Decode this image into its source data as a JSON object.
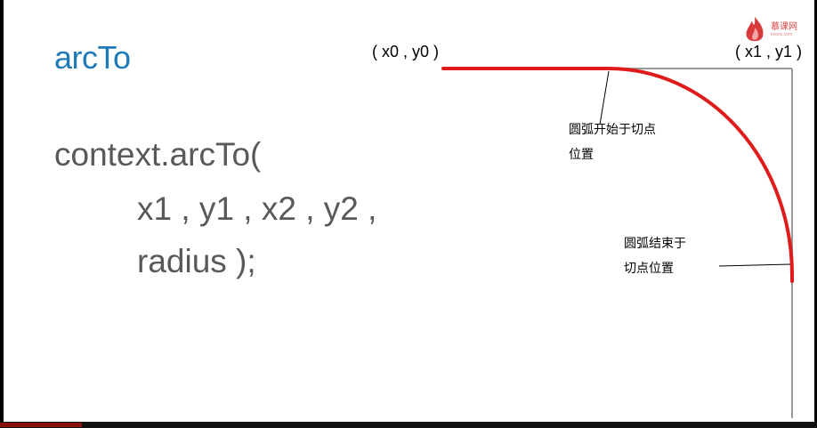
{
  "slide": {
    "title": "arcTo",
    "code_lines": [
      "context.arcTo(",
      "x1 , y1 , x2 , y2 ,",
      "radius );"
    ],
    "point_start": "( x0 , y0 )",
    "point_corner": "( x1 , y1 )",
    "note_start": [
      "圆弧开始于切点",
      "位置"
    ],
    "note_end": [
      "圆弧结束于",
      "切点位置"
    ],
    "logo_text": "慕课网",
    "logo_subtext": "imooc.com"
  },
  "colors": {
    "title": "#1f7ab8",
    "code": "#595959",
    "arc": "#e01b1b",
    "guide_line": "#9a9a9a",
    "progress": "#8b1010"
  },
  "playback": {
    "progress_fraction": 0.1
  }
}
